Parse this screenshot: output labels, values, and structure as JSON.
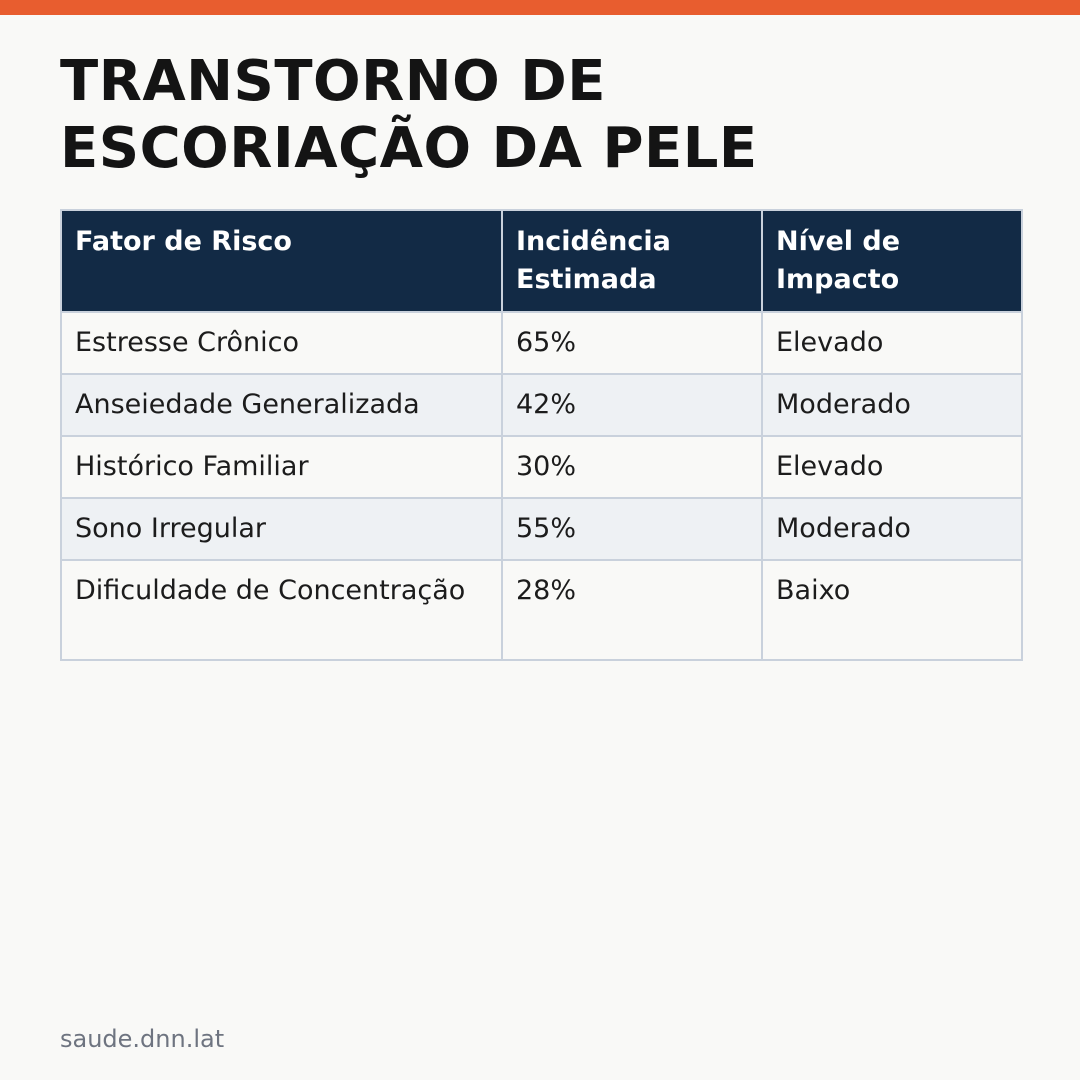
{
  "colors": {
    "accent": "#e85d2f",
    "header_bg": "#122a45",
    "row_alt": "#eef1f4",
    "border": "#c9d1dc"
  },
  "title": "TRANSTORNO DE ESCORIAÇÃO DA PELE",
  "table": {
    "headers": [
      "Fator de Risco",
      "Incidência Estimada",
      "Nível de Impacto"
    ],
    "rows": [
      [
        "Estresse Crônico",
        "65%",
        "Elevado"
      ],
      [
        "Anseiedade Generalizada",
        "42%",
        "Moderado"
      ],
      [
        "Histórico Familiar",
        "30%",
        "Elevado"
      ],
      [
        "Sono Irregular",
        "55%",
        "Moderado"
      ],
      [
        "Dificuldade de Concentração",
        "28%",
        "Baixo"
      ]
    ]
  },
  "footer": "saude.dnn.lat"
}
